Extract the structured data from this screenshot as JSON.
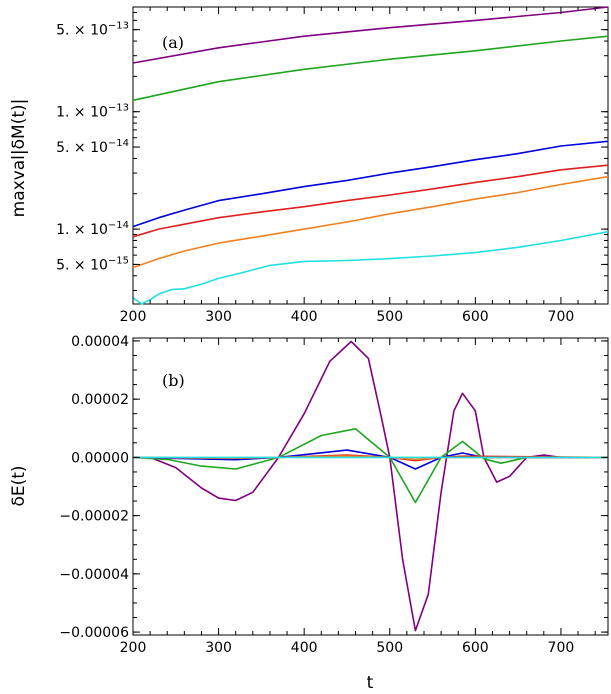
{
  "chart_data": [
    {
      "type": "line",
      "panel_label": "(a)",
      "ylabel": "maxval|δM(t)|",
      "xlabel": "",
      "xlim": [
        200,
        755
      ],
      "ylim": [
        2.3e-15,
        7.8e-13
      ],
      "yscale": "log",
      "x_ticks": [
        200,
        300,
        400,
        500,
        600,
        700
      ],
      "y_tick_labels": [
        {
          "value": 5e-13,
          "mantissa": "5.",
          "exponent": "−13"
        },
        {
          "value": 1e-13,
          "mantissa": "1.",
          "exponent": "−13"
        },
        {
          "value": 5e-14,
          "mantissa": "5.",
          "exponent": "−14"
        },
        {
          "value": 1e-14,
          "mantissa": "1.",
          "exponent": "−14"
        },
        {
          "value": 5e-15,
          "mantissa": "5.",
          "exponent": "−15"
        }
      ],
      "series": [
        {
          "color": "#800080",
          "x": [
            200,
            300,
            400,
            500,
            600,
            700,
            755
          ],
          "y": [
            2.6e-13,
            3.5e-13,
            4.4e-13,
            5.2e-13,
            6e-13,
            7e-13,
            7.8e-13
          ]
        },
        {
          "color": "#1fa51f",
          "x": [
            200,
            300,
            400,
            500,
            600,
            700,
            755
          ],
          "y": [
            1.25e-13,
            1.8e-13,
            2.3e-13,
            2.8e-13,
            3.3e-13,
            4e-13,
            4.4e-13
          ]
        },
        {
          "color": "#0000dd",
          "x": [
            200,
            230,
            260,
            300,
            350,
            400,
            450,
            500,
            550,
            600,
            650,
            700,
            755
          ],
          "y": [
            1.05e-14,
            1.25e-14,
            1.45e-14,
            1.75e-14,
            2e-14,
            2.3e-14,
            2.6e-14,
            3e-14,
            3.4e-14,
            3.9e-14,
            4.4e-14,
            5.1e-14,
            5.6e-14
          ]
        },
        {
          "color": "#e02020",
          "x": [
            200,
            230,
            260,
            300,
            350,
            400,
            450,
            500,
            550,
            600,
            650,
            700,
            755
          ],
          "y": [
            8.6e-15,
            1e-14,
            1.1e-14,
            1.25e-14,
            1.4e-14,
            1.55e-14,
            1.75e-14,
            1.95e-14,
            2.2e-14,
            2.5e-14,
            2.8e-14,
            3.2e-14,
            3.5e-14
          ]
        },
        {
          "color": "#f08020",
          "x": [
            200,
            230,
            260,
            300,
            350,
            400,
            450,
            500,
            550,
            600,
            650,
            700,
            755
          ],
          "y": [
            4.7e-15,
            5.6e-15,
            6.5e-15,
            7.6e-15,
            8.7e-15,
            1e-14,
            1.15e-14,
            1.35e-14,
            1.55e-14,
            1.8e-14,
            2.05e-14,
            2.4e-14,
            2.8e-14
          ]
        },
        {
          "color": "#20e0e0",
          "x": [
            200,
            210,
            220,
            230,
            245,
            260,
            280,
            300,
            330,
            360,
            400,
            450,
            500,
            550,
            600,
            650,
            700,
            755
          ],
          "y": [
            2.6e-15,
            2.3e-15,
            2.5e-15,
            2.8e-15,
            3.05e-15,
            3.1e-15,
            3.4e-15,
            3.8e-15,
            4.3e-15,
            4.9e-15,
            5.3e-15,
            5.4e-15,
            5.6e-15,
            5.9e-15,
            6.3e-15,
            7e-15,
            8e-15,
            9.5e-15
          ]
        }
      ]
    },
    {
      "type": "line",
      "panel_label": "(b)",
      "ylabel": "δE(t)",
      "xlabel": "t",
      "xlim": [
        200,
        755
      ],
      "ylim": [
        -6.1e-05,
        4.1e-05
      ],
      "x_ticks": [
        200,
        300,
        400,
        500,
        600,
        700
      ],
      "y_ticks": [
        4e-05,
        2e-05,
        0,
        -2e-05,
        -4e-05,
        -6e-05
      ],
      "y_tick_labels": [
        "0.00004",
        "0.00002",
        "0.00000",
        "−0.00002",
        "−0.00004",
        "−0.00006"
      ],
      "series": [
        {
          "color": "#800080",
          "x": [
            200,
            220,
            250,
            280,
            300,
            320,
            340,
            370,
            400,
            430,
            455,
            475,
            490,
            500,
            515,
            530,
            545,
            560,
            575,
            585,
            600,
            610,
            625,
            640,
            660,
            680,
            700,
            755
          ],
          "y": [
            0,
            0,
            -3.5e-06,
            -1.05e-05,
            -1.4e-05,
            -1.48e-05,
            -1.2e-05,
            0,
            1.5e-05,
            3.3e-05,
            3.98e-05,
            3.4e-05,
            1.4e-05,
            0,
            -3.5e-05,
            -5.95e-05,
            -4.7e-05,
            -1.2e-05,
            1.6e-05,
            2.2e-05,
            1.6e-05,
            0,
            -8.5e-06,
            -6.5e-06,
            0,
            8e-07,
            0,
            0
          ]
        },
        {
          "color": "#1fa51f",
          "x": [
            200,
            240,
            280,
            320,
            370,
            420,
            460,
            500,
            530,
            560,
            585,
            610,
            630,
            660,
            755
          ],
          "y": [
            0,
            -7e-07,
            -3e-06,
            -4e-06,
            0,
            7.5e-06,
            9.8e-06,
            0,
            -1.55e-05,
            0,
            5.5e-06,
            -5e-07,
            -2e-06,
            0,
            0
          ]
        },
        {
          "color": "#0000dd",
          "x": [
            200,
            320,
            370,
            450,
            500,
            530,
            560,
            585,
            610,
            755
          ],
          "y": [
            0,
            -8e-07,
            0,
            2.5e-06,
            0,
            -4e-06,
            0,
            1.5e-06,
            0,
            0
          ]
        },
        {
          "color": "#e02020",
          "x": [
            200,
            320,
            370,
            450,
            500,
            530,
            560,
            585,
            755
          ],
          "y": [
            0,
            -3e-07,
            0,
            8e-07,
            0,
            -1.1e-06,
            0,
            4e-07,
            0
          ]
        },
        {
          "color": "#f08020",
          "x": [
            200,
            320,
            370,
            450,
            500,
            530,
            560,
            755
          ],
          "y": [
            0,
            -2e-07,
            0,
            5e-07,
            0,
            -7e-07,
            0,
            0
          ]
        },
        {
          "color": "#20e0e0",
          "x": [
            200,
            755
          ],
          "y": [
            0,
            0
          ]
        }
      ]
    }
  ]
}
